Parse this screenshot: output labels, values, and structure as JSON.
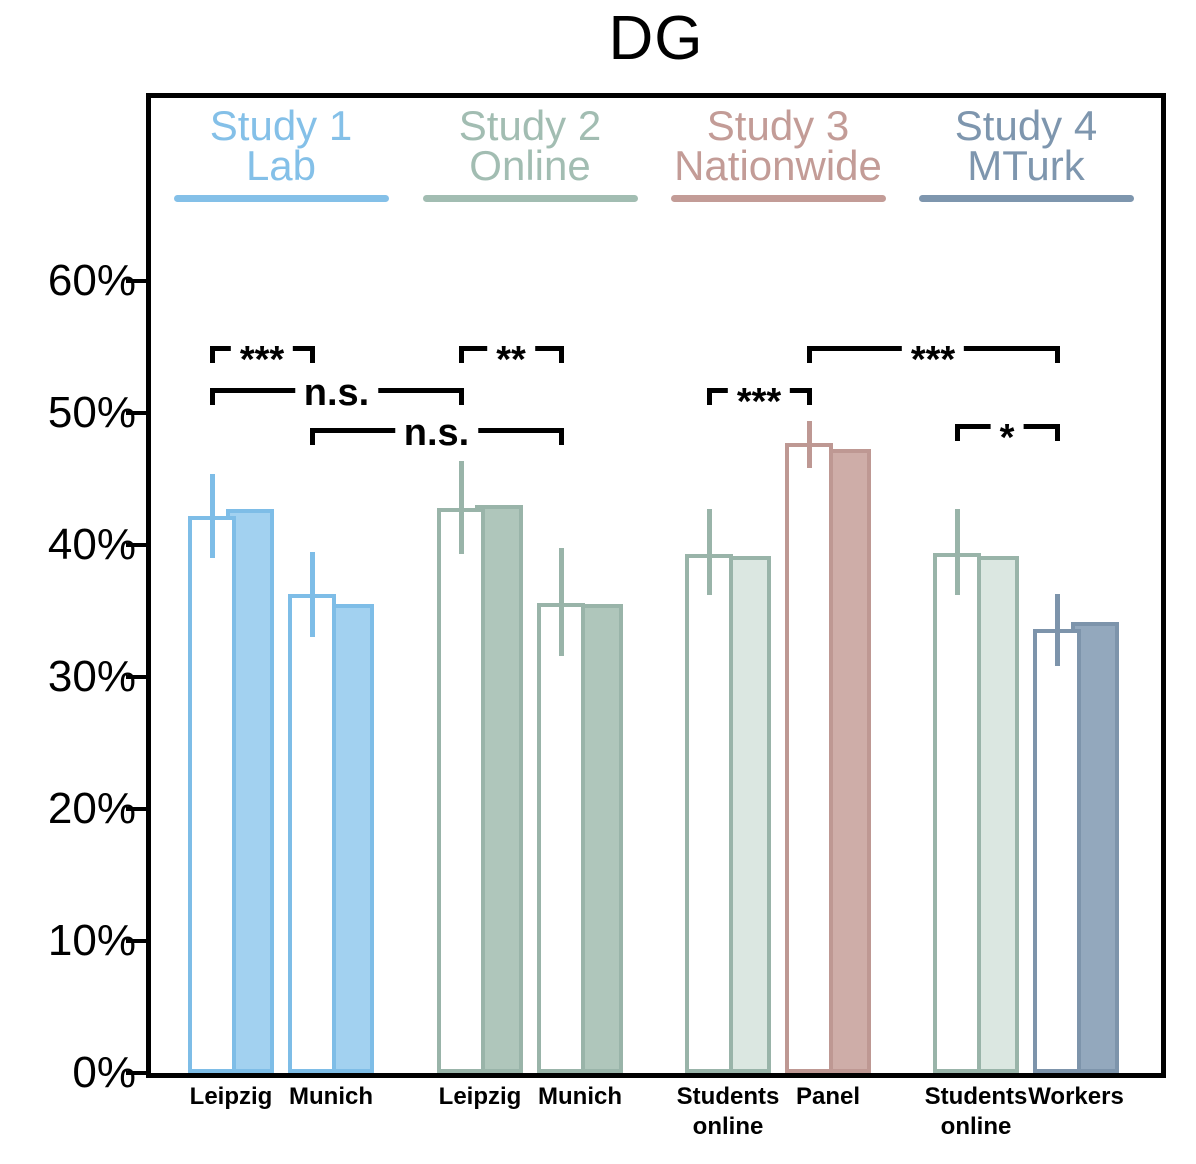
{
  "title": "DG",
  "chart_data": {
    "type": "bar",
    "title": "DG",
    "xlabel": "",
    "ylabel": "",
    "ylim": [
      0,
      60
    ],
    "y_unit": "%",
    "y_tick_values": [
      0,
      10,
      20,
      30,
      40,
      50,
      60
    ],
    "y_tick_labels": [
      "0%",
      "10%",
      "20%",
      "30%",
      "40%",
      "50%",
      "60%"
    ],
    "grid": false,
    "legend_position": "inside-top",
    "bar_style": "paired: outlined bar with error bar (front) + filled bar (behind, offset right)",
    "studies": [
      {
        "id": "s1",
        "label": "Study 1\nLab",
        "color": "#84C0E8",
        "stroke": "#7EBDE7",
        "fill": "#A2D1F0",
        "groups": [
          {
            "id": "s1-leipzig",
            "x_label": "Leipzig",
            "outlined_value": 42.2,
            "filled_value": 42.7,
            "ci_low": 39.0,
            "ci_high": 45.4
          },
          {
            "id": "s1-munich",
            "x_label": "Munich",
            "outlined_value": 36.3,
            "filled_value": 35.5,
            "ci_low": 33.0,
            "ci_high": 39.5
          }
        ]
      },
      {
        "id": "s2",
        "label": "Study 2\nOnline",
        "color": "#A2BDB2",
        "stroke": "#99B4A9",
        "fill": "#AFC6BB",
        "groups": [
          {
            "id": "s2-leipzig",
            "x_label": "Leipzig",
            "outlined_value": 42.8,
            "filled_value": 43.0,
            "ci_low": 39.3,
            "ci_high": 46.4
          },
          {
            "id": "s2-munich",
            "x_label": "Munich",
            "outlined_value": 35.6,
            "filled_value": 35.5,
            "ci_low": 31.6,
            "ci_high": 39.8
          }
        ]
      },
      {
        "id": "s3",
        "label": "Study 3\nNationwide",
        "color": "#C39C97",
        "stroke": "#BE9893",
        "fill": "#CEADA8",
        "groups": [
          {
            "id": "s3-students",
            "x_label": "Students\nonline",
            "outlined_value": 39.3,
            "filled_value": 39.2,
            "ci_low": 36.2,
            "ci_high": 42.7,
            "stroke_override": "#99B4A9",
            "fill_override": "#DBE7E1"
          },
          {
            "id": "s3-panel",
            "x_label": "Panel",
            "outlined_value": 47.7,
            "filled_value": 47.3,
            "ci_low": 45.8,
            "ci_high": 49.4
          }
        ]
      },
      {
        "id": "s4",
        "label": "Study 4\nMTurk",
        "color": "#7E96AE",
        "stroke": "#7D94AB",
        "fill": "#93A8BD",
        "groups": [
          {
            "id": "s4-students",
            "x_label": "Students\nonline",
            "outlined_value": 39.4,
            "filled_value": 39.2,
            "ci_low": 36.2,
            "ci_high": 42.7,
            "stroke_override": "#99B4A9",
            "fill_override": "#DBE7E1"
          },
          {
            "id": "s4-workers",
            "x_label": "Workers",
            "outlined_value": 33.6,
            "filled_value": 34.2,
            "ci_low": 30.8,
            "ci_high": 36.3
          }
        ]
      }
    ],
    "significance_brackets": [
      {
        "from": "s1-leipzig",
        "to": "s1-munich",
        "label": "***",
        "y_value": 55.1
      },
      {
        "from": "s1-leipzig",
        "to": "s2-leipzig",
        "label": "n.s.",
        "y_value": 51.9
      },
      {
        "from": "s1-munich",
        "to": "s2-munich",
        "label": "n.s.",
        "y_value": 48.9
      },
      {
        "from": "s2-leipzig",
        "to": "s2-munich",
        "label": "**",
        "y_value": 55.1
      },
      {
        "from": "s3-students",
        "to": "s3-panel",
        "label": "***",
        "y_value": 51.9
      },
      {
        "from": "s3-panel",
        "to": "s4-workers",
        "label": "***",
        "y_value": 55.1
      },
      {
        "from": "s4-students",
        "to": "s4-workers",
        "label": "*",
        "y_value": 49.2
      }
    ]
  }
}
